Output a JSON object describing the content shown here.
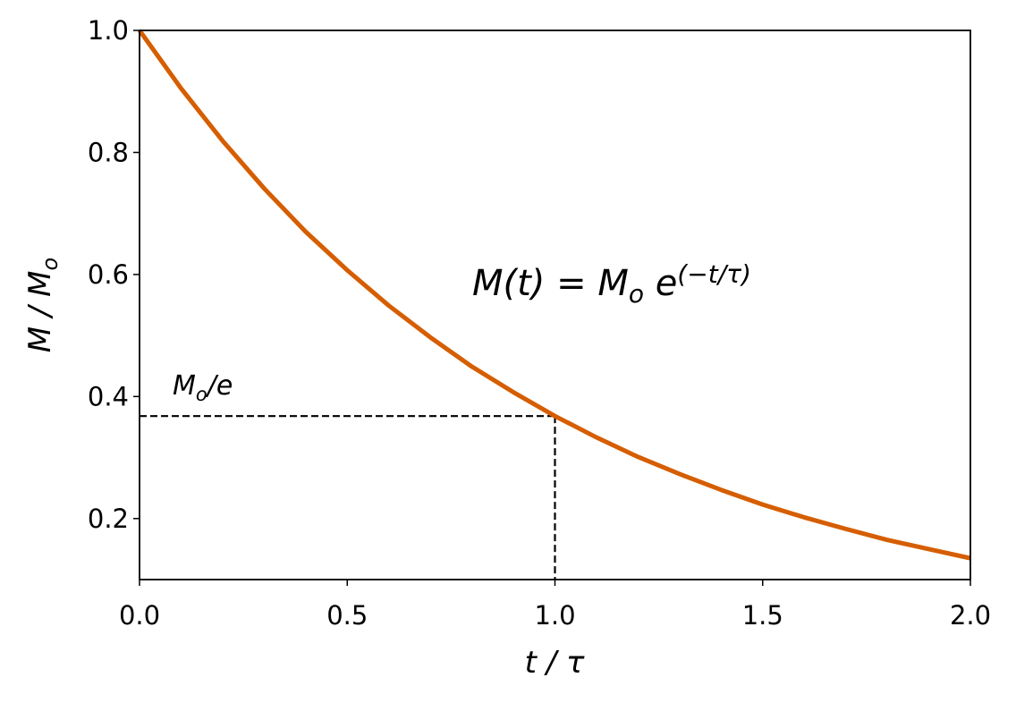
{
  "chart_data": {
    "type": "line",
    "x": [
      0.0,
      0.1,
      0.2,
      0.3,
      0.4,
      0.5,
      0.6,
      0.7,
      0.8,
      0.9,
      1.0,
      1.1,
      1.2,
      1.3,
      1.4,
      1.5,
      1.6,
      1.7,
      1.8,
      1.9,
      2.0
    ],
    "values": [
      1.0,
      0.905,
      0.819,
      0.741,
      0.67,
      0.607,
      0.549,
      0.497,
      0.449,
      0.407,
      0.368,
      0.333,
      0.301,
      0.273,
      0.247,
      0.223,
      0.202,
      0.183,
      0.165,
      0.15,
      0.135
    ],
    "color": "#d55e00",
    "xlim": [
      0,
      2
    ],
    "ylim": [
      0.1,
      1.0
    ],
    "xticks": [
      {
        "value": 0,
        "label": "0.0"
      },
      0.5,
      {
        "value": 1,
        "label": "1.0"
      },
      1.5,
      {
        "value": 2,
        "label": "2.0"
      }
    ],
    "yticks": [
      0.2,
      0.4,
      0.6,
      0.8,
      {
        "value": 1,
        "label": "1.0"
      }
    ],
    "grid": false,
    "xlabel": {
      "main": "t / τ"
    },
    "ylabel": {
      "main": "M / M",
      "sub": "o"
    },
    "reference": {
      "x": 1.0,
      "y": 0.368,
      "label": {
        "main": "M",
        "sub": "o",
        "rest": "/e"
      }
    },
    "formula": {
      "main": "M(t) = M",
      "sub": "o",
      "mid": " e",
      "sup": "(−t/τ)"
    }
  }
}
